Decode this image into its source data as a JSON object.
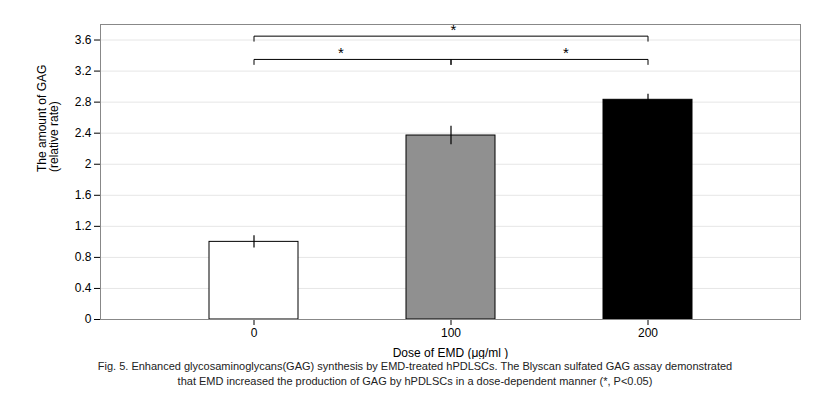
{
  "chart_data": {
    "type": "bar",
    "categories": [
      "0",
      "100",
      "200"
    ],
    "values": [
      1.0,
      2.37,
      2.83
    ],
    "errors": [
      0.08,
      0.12,
      0.07
    ],
    "colors": [
      "#ffffff",
      "#909090",
      "#000000"
    ],
    "xlabel": "Dose of EMD (μg/ml )",
    "ylabel": "The amount of GAG\n(relative rate)",
    "ylim": [
      0,
      3.8
    ],
    "yticks": [
      0,
      0.4,
      0.8,
      1.2,
      1.6,
      2.0,
      2.4,
      2.8,
      3.2,
      3.6
    ],
    "grid": true,
    "annotations": [
      {
        "x1": "0",
        "x2": "100",
        "y": 3.35,
        "label": "*"
      },
      {
        "x1": "0",
        "x2": "200",
        "y": 3.65,
        "label": "*"
      },
      {
        "x1": "100",
        "x2": "200",
        "y": 3.35,
        "label": "*"
      }
    ],
    "caption": [
      "Fig. 5. Enhanced glycosaminoglycans(GAG) synthesis by EMD-treated hPDLSCs. The Blyscan sulfated GAG assay demonstrated",
      "that EMD increased the production of GAG by hPDLSCs in a dose-dependent manner (*, P<0.05)"
    ]
  }
}
